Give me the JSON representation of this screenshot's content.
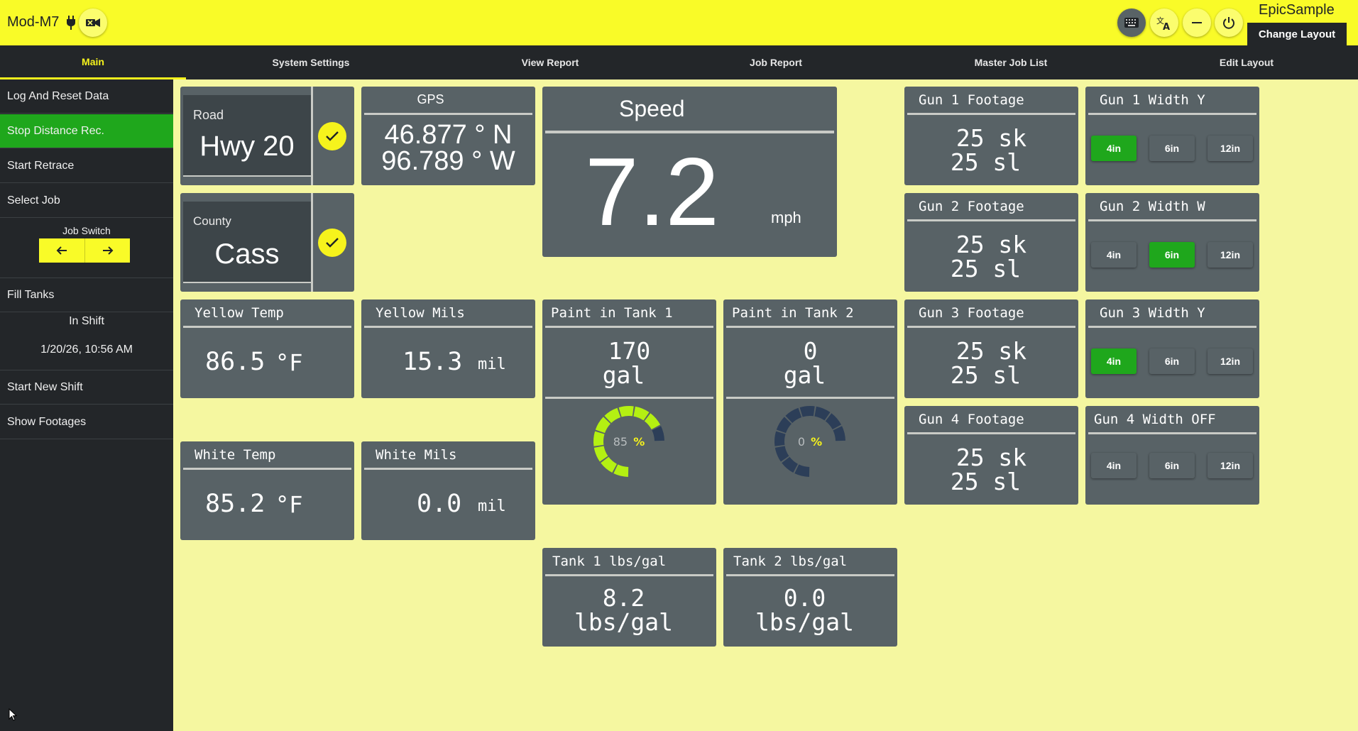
{
  "header": {
    "device_name": "Mod-M7",
    "brand": "EpicSample",
    "change_layout_label": "Change Layout",
    "icons": [
      "plug-icon",
      "video-camera-icon",
      "keyboard-icon",
      "translate-icon",
      "minimize-icon",
      "power-icon"
    ]
  },
  "nav": {
    "tabs": [
      {
        "label": "Main",
        "active": true
      },
      {
        "label": "System Settings"
      },
      {
        "label": "View Report"
      },
      {
        "label": "Job Report"
      },
      {
        "label": "Master Job List"
      },
      {
        "label": "Edit Layout"
      }
    ]
  },
  "sidebar": {
    "log_reset": "Log And Reset Data",
    "stop_distance": "Stop Distance Rec.",
    "start_retrace": "Start Retrace",
    "select_job": "Select Job",
    "job_switch": "Job Switch",
    "fill_tanks": "Fill Tanks",
    "shift_status": "In Shift",
    "shift_time": "1/20/26, 10:56 AM",
    "start_new_shift": "Start New Shift",
    "show_footages": "Show Footages"
  },
  "road": {
    "label": "Road",
    "value": "Hwy 20"
  },
  "county": {
    "label": "County",
    "value": "Cass"
  },
  "gps": {
    "title": "GPS",
    "lat": "46.877 ° N",
    "lon": "96.789 ° W"
  },
  "speed": {
    "title": "Speed",
    "value": "7.2",
    "unit": "mph"
  },
  "yellow_temp": {
    "title": "Yellow Temp",
    "value": "86.5",
    "unit": "°F"
  },
  "yellow_mils": {
    "title": "Yellow Mils",
    "value": "15.3",
    "unit": "mil"
  },
  "white_temp": {
    "title": "White Temp",
    "value": "85.2",
    "unit": "°F"
  },
  "white_mils": {
    "title": "White Mils",
    "value": "0.0",
    "unit": "mil"
  },
  "tank1": {
    "title": "Paint in Tank 1",
    "value": "170",
    "unit": "gal",
    "percent": 85,
    "percent_label": "85",
    "percent_sign": "%"
  },
  "tank2": {
    "title": "Paint in Tank 2",
    "value": "0",
    "unit": "gal",
    "percent": 0,
    "percent_label": "0",
    "percent_sign": "%"
  },
  "tank1_density": {
    "title": "Tank 1 lbs/gal",
    "value": "8.2",
    "unit": "lbs/gal"
  },
  "tank2_density": {
    "title": "Tank 2 lbs/gal",
    "value": "0.0",
    "unit": "lbs/gal"
  },
  "footage": [
    {
      "title": "Gun 1 Footage",
      "sk": "25 sk",
      "sl": "25 sl"
    },
    {
      "title": "Gun 2 Footage",
      "sk": "25 sk",
      "sl": "25 sl"
    },
    {
      "title": "Gun 3 Footage",
      "sk": "25 sk",
      "sl": "25 sl"
    },
    {
      "title": "Gun 4 Footage",
      "sk": "25 sk",
      "sl": "25 sl"
    }
  ],
  "widths": [
    {
      "title": "Gun 1 Width Y",
      "options": [
        "4in",
        "6in",
        "12in"
      ],
      "selected": "4in"
    },
    {
      "title": "Gun 2 Width W",
      "options": [
        "4in",
        "6in",
        "12in"
      ],
      "selected": "6in"
    },
    {
      "title": "Gun 3 Width Y",
      "options": [
        "4in",
        "6in",
        "12in"
      ],
      "selected": "4in"
    },
    {
      "title": "Gun 4 Width OFF",
      "options": [
        "4in",
        "6in",
        "12in"
      ],
      "selected": ""
    }
  ],
  "colors": {
    "topbar": "#f9fb28",
    "background": "#f5f7a0",
    "panel": "#586266",
    "active_green": "#1fa71c",
    "gauge_fill": "#b4f012",
    "gauge_empty": "#2c3e58"
  }
}
